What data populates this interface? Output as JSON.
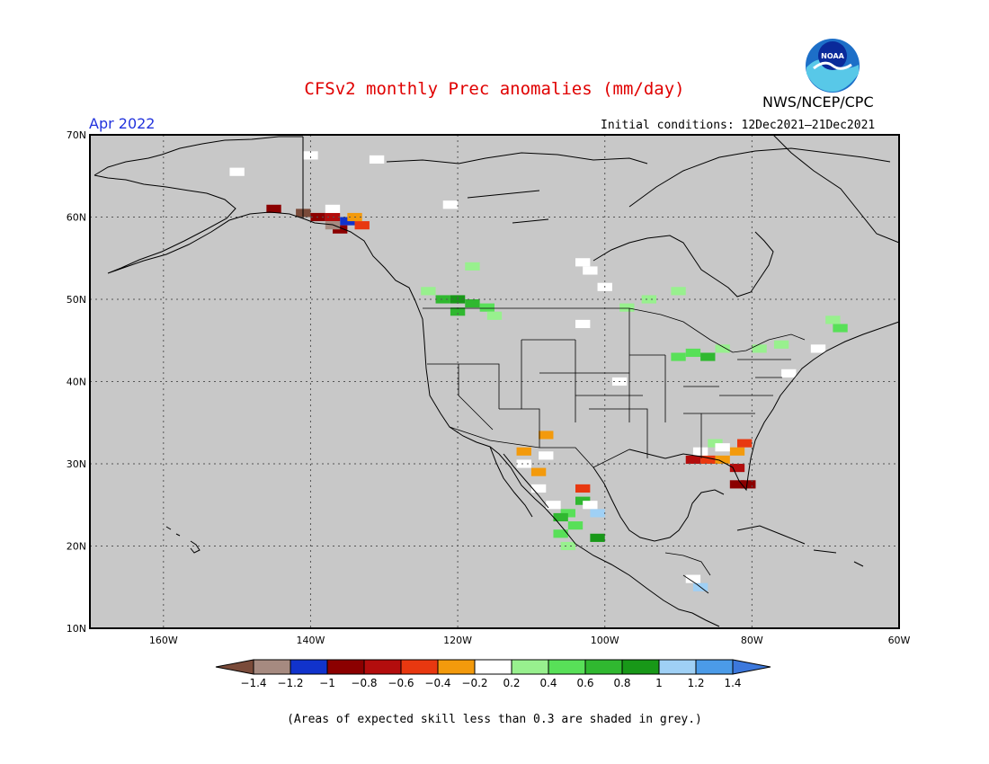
{
  "title": "CFSv2 monthly Prec anomalies (mm/day)",
  "agency": "NWS/NCEP/CPC",
  "logo_text": "NOAA",
  "period": "Apr 2022",
  "initial_conditions": "Initial conditions: 12Dec2021–21Dec2021",
  "note": "(Areas of expected skill less than 0.3 are shaded in grey.)",
  "map": {
    "background_color": "#c8c8c8",
    "lat_labels": [
      "70N",
      "60N",
      "50N",
      "40N",
      "30N",
      "20N",
      "10N"
    ],
    "lon_labels": [
      "160W",
      "140W",
      "120W",
      "100W",
      "80W",
      "60W"
    ],
    "lat_range": [
      10,
      70
    ],
    "lon_range": [
      -170,
      -60
    ]
  },
  "colorbar": {
    "colors": [
      "#7a4b3a",
      "#a68a80",
      "#1133cc",
      "#8b0000",
      "#b30d0d",
      "#e83810",
      "#f39a0c",
      "#ffffff",
      "#98f08e",
      "#58e058",
      "#30b830",
      "#189818",
      "#9fd0f5",
      "#4b9be8",
      "#3c78dc"
    ],
    "labels": [
      "−1.4",
      "−1.2",
      "−1",
      "−0.8",
      "−0.6",
      "−0.4",
      "−0.2",
      "0.2",
      "0.4",
      "0.6",
      "0.8",
      "1",
      "1.2",
      "1.4"
    ]
  },
  "anomaly_cells": [
    {
      "lon": -145,
      "lat": 61,
      "color": "#8b0000"
    },
    {
      "lon": -141,
      "lat": 60.5,
      "color": "#7a4b3a"
    },
    {
      "lon": -139,
      "lat": 60,
      "color": "#8b0000"
    },
    {
      "lon": -137,
      "lat": 60,
      "color": "#b30d0d"
    },
    {
      "lon": -135,
      "lat": 59.5,
      "color": "#1133cc"
    },
    {
      "lon": -134,
      "lat": 60,
      "color": "#f39a0c"
    },
    {
      "lon": -133,
      "lat": 59,
      "color": "#e83810"
    },
    {
      "lon": -136,
      "lat": 58.5,
      "color": "#8b0000"
    },
    {
      "lon": -137,
      "lat": 59,
      "color": "#a68a80"
    },
    {
      "lon": -124,
      "lat": 51,
      "color": "#98f08e"
    },
    {
      "lon": -122,
      "lat": 50,
      "color": "#30b830"
    },
    {
      "lon": -120,
      "lat": 50,
      "color": "#189818"
    },
    {
      "lon": -118,
      "lat": 49.5,
      "color": "#30b830"
    },
    {
      "lon": -116,
      "lat": 49,
      "color": "#58e058"
    },
    {
      "lon": -115,
      "lat": 48,
      "color": "#98f08e"
    },
    {
      "lon": -120,
      "lat": 48.5,
      "color": "#30b830"
    },
    {
      "lon": -118,
      "lat": 54,
      "color": "#98f08e"
    },
    {
      "lon": -97,
      "lat": 49,
      "color": "#98f08e"
    },
    {
      "lon": -94,
      "lat": 50,
      "color": "#98f08e"
    },
    {
      "lon": -90,
      "lat": 51,
      "color": "#98f08e"
    },
    {
      "lon": -88,
      "lat": 43.5,
      "color": "#58e058"
    },
    {
      "lon": -86,
      "lat": 43,
      "color": "#30b830"
    },
    {
      "lon": -84,
      "lat": 44,
      "color": "#98f08e"
    },
    {
      "lon": -90,
      "lat": 43,
      "color": "#58e058"
    },
    {
      "lon": -79,
      "lat": 44,
      "color": "#98f08e"
    },
    {
      "lon": -76,
      "lat": 44.5,
      "color": "#98f08e"
    },
    {
      "lon": -68,
      "lat": 46.5,
      "color": "#58e058"
    },
    {
      "lon": -69,
      "lat": 47.5,
      "color": "#98f08e"
    },
    {
      "lon": -111,
      "lat": 31.5,
      "color": "#f39a0c"
    },
    {
      "lon": -108,
      "lat": 33.5,
      "color": "#f39a0c"
    },
    {
      "lon": -109,
      "lat": 29,
      "color": "#f39a0c"
    },
    {
      "lon": -103,
      "lat": 27,
      "color": "#e83810"
    },
    {
      "lon": -103,
      "lat": 25.5,
      "color": "#30b830"
    },
    {
      "lon": -105,
      "lat": 24,
      "color": "#58e058"
    },
    {
      "lon": -106,
      "lat": 23.5,
      "color": "#30b830"
    },
    {
      "lon": -104,
      "lat": 22.5,
      "color": "#58e058"
    },
    {
      "lon": -106,
      "lat": 21.5,
      "color": "#58e058"
    },
    {
      "lon": -105,
      "lat": 20,
      "color": "#98f08e"
    },
    {
      "lon": -101,
      "lat": 21,
      "color": "#189818"
    },
    {
      "lon": -101,
      "lat": 24,
      "color": "#9fd0f5"
    },
    {
      "lon": -88,
      "lat": 30.5,
      "color": "#b30d0d"
    },
    {
      "lon": -86,
      "lat": 30.5,
      "color": "#e83810"
    },
    {
      "lon": -84,
      "lat": 30.5,
      "color": "#f39a0c"
    },
    {
      "lon": -82,
      "lat": 31.5,
      "color": "#f39a0c"
    },
    {
      "lon": -81,
      "lat": 32.5,
      "color": "#e83810"
    },
    {
      "lon": -82,
      "lat": 29.5,
      "color": "#b30d0d"
    },
    {
      "lon": -82,
      "lat": 27.5,
      "color": "#8b0000"
    },
    {
      "lon": -80.5,
      "lat": 27.5,
      "color": "#8b0000"
    },
    {
      "lon": -85,
      "lat": 32.5,
      "color": "#98f08e"
    },
    {
      "lon": -87,
      "lat": 15,
      "color": "#9fd0f5"
    }
  ],
  "low_skill_white_patches": [
    {
      "lon": -140,
      "lat": 67.5
    },
    {
      "lon": -131,
      "lat": 67
    },
    {
      "lon": -150,
      "lat": 65.5
    },
    {
      "lon": -137,
      "lat": 61
    },
    {
      "lon": -121,
      "lat": 61.5
    },
    {
      "lon": -103,
      "lat": 54.5
    },
    {
      "lon": -102,
      "lat": 53.5
    },
    {
      "lon": -100,
      "lat": 51.5
    },
    {
      "lon": -103,
      "lat": 47
    },
    {
      "lon": -98,
      "lat": 40
    },
    {
      "lon": -71,
      "lat": 44
    },
    {
      "lon": -75,
      "lat": 41
    },
    {
      "lon": -111,
      "lat": 30
    },
    {
      "lon": -108,
      "lat": 31
    },
    {
      "lon": -109,
      "lat": 27
    },
    {
      "lon": -107,
      "lat": 25
    },
    {
      "lon": -102,
      "lat": 25
    },
    {
      "lon": -84,
      "lat": 32
    },
    {
      "lon": -87,
      "lat": 31.5
    },
    {
      "lon": -88,
      "lat": 16
    }
  ]
}
